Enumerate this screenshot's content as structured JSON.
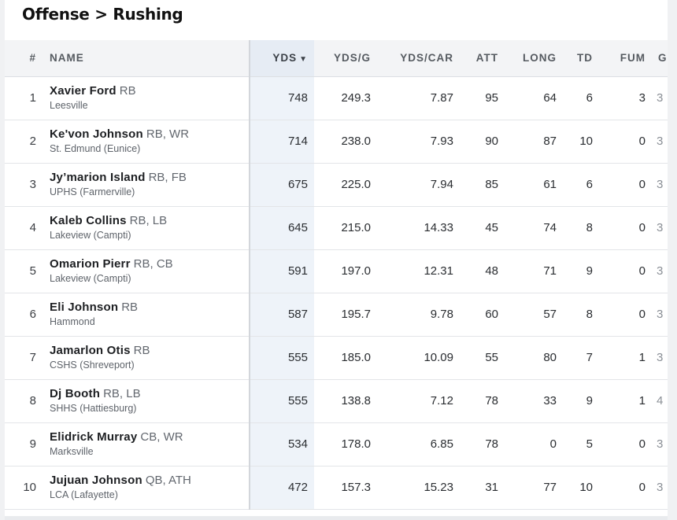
{
  "section_title": "Offense > Rushing",
  "columns": {
    "rank": "#",
    "name": "NAME",
    "yds": "YDS",
    "ydsg": "YDS/G",
    "ydscar": "YDS/CAR",
    "att": "ATT",
    "long": "LONG",
    "td": "TD",
    "fum": "FUM",
    "gp": "GP"
  },
  "sort_indicator": "▼",
  "rows": [
    {
      "rank": "1",
      "name": "Xavier Ford",
      "pos": "RB",
      "school": "Leesville",
      "yds": "748",
      "ydsg": "249.3",
      "ydscar": "7.87",
      "att": "95",
      "long": "64",
      "td": "6",
      "fum": "3",
      "gp": "3"
    },
    {
      "rank": "2",
      "name": "Ke'von Johnson",
      "pos": "RB, WR",
      "school": "St. Edmund (Eunice)",
      "yds": "714",
      "ydsg": "238.0",
      "ydscar": "7.93",
      "att": "90",
      "long": "87",
      "td": "10",
      "fum": "0",
      "gp": "3"
    },
    {
      "rank": "3",
      "name": "Jy’marion Island",
      "pos": "RB, FB",
      "school": "UPHS (Farmerville)",
      "yds": "675",
      "ydsg": "225.0",
      "ydscar": "7.94",
      "att": "85",
      "long": "61",
      "td": "6",
      "fum": "0",
      "gp": "3"
    },
    {
      "rank": "4",
      "name": "Kaleb Collins",
      "pos": "RB, LB",
      "school": "Lakeview (Campti)",
      "yds": "645",
      "ydsg": "215.0",
      "ydscar": "14.33",
      "att": "45",
      "long": "74",
      "td": "8",
      "fum": "0",
      "gp": "3"
    },
    {
      "rank": "5",
      "name": "Omarion Pierr",
      "pos": "RB, CB",
      "school": "Lakeview (Campti)",
      "yds": "591",
      "ydsg": "197.0",
      "ydscar": "12.31",
      "att": "48",
      "long": "71",
      "td": "9",
      "fum": "0",
      "gp": "3"
    },
    {
      "rank": "6",
      "name": "Eli Johnson",
      "pos": "RB",
      "school": "Hammond",
      "yds": "587",
      "ydsg": "195.7",
      "ydscar": "9.78",
      "att": "60",
      "long": "57",
      "td": "8",
      "fum": "0",
      "gp": "3"
    },
    {
      "rank": "7",
      "name": "Jamarlon Otis",
      "pos": "RB",
      "school": "CSHS (Shreveport)",
      "yds": "555",
      "ydsg": "185.0",
      "ydscar": "10.09",
      "att": "55",
      "long": "80",
      "td": "7",
      "fum": "1",
      "gp": "3"
    },
    {
      "rank": "8",
      "name": "Dj Booth",
      "pos": "RB, LB",
      "school": "SHHS (Hattiesburg)",
      "yds": "555",
      "ydsg": "138.8",
      "ydscar": "7.12",
      "att": "78",
      "long": "33",
      "td": "9",
      "fum": "1",
      "gp": "4"
    },
    {
      "rank": "9",
      "name": "Elidrick Murray",
      "pos": "CB, WR",
      "school": "Marksville",
      "yds": "534",
      "ydsg": "178.0",
      "ydscar": "6.85",
      "att": "78",
      "long": "0",
      "td": "5",
      "fum": "0",
      "gp": "3"
    },
    {
      "rank": "10",
      "name": "Jujuan Johnson",
      "pos": "QB, ATH",
      "school": "LCA (Lafayette)",
      "yds": "472",
      "ydsg": "157.3",
      "ydscar": "15.23",
      "att": "31",
      "long": "77",
      "td": "10",
      "fum": "0",
      "gp": "3"
    }
  ]
}
